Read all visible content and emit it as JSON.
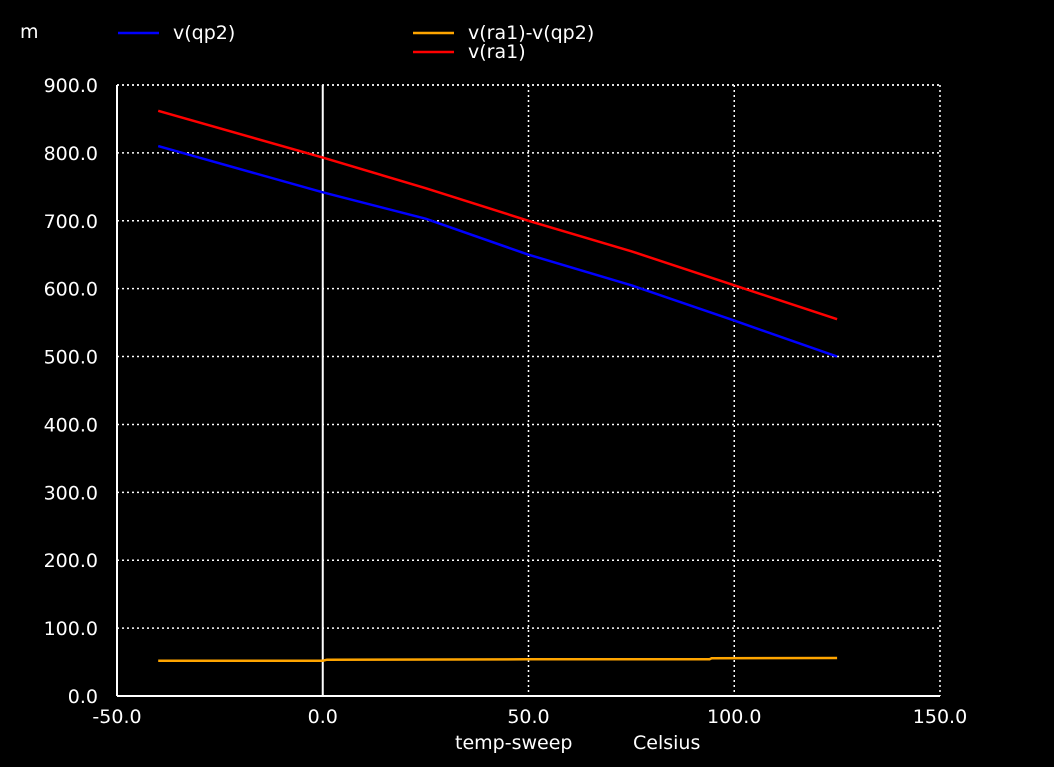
{
  "unit_prefix": "m",
  "xlabel": "temp-sweep",
  "xunit": "Celsius",
  "chart_data": {
    "type": "line",
    "xlim": [
      -50,
      150
    ],
    "ylim": [
      0,
      900
    ],
    "grid": true,
    "x_ticks": [
      "-50.0",
      "0.0",
      "50.0",
      "100.0",
      "150.0"
    ],
    "y_ticks": [
      "0.0",
      "100.0",
      "200.0",
      "300.0",
      "400.0",
      "500.0",
      "600.0",
      "700.0",
      "800.0",
      "900.0"
    ],
    "marker_x": 0,
    "series": [
      {
        "name": "v(qp2)",
        "color": "#0000ff",
        "x": [
          -40,
          0,
          25,
          50,
          75,
          100,
          125
        ],
        "y": [
          810,
          742,
          703,
          650,
          605,
          553,
          500
        ]
      },
      {
        "name": "v(ra1)-v(qp2)",
        "color": "#ffa500",
        "x": [
          -40,
          0,
          1,
          50,
          94,
          94.5,
          125
        ],
        "y": [
          52,
          52,
          53.5,
          54,
          54,
          55.5,
          56
        ]
      },
      {
        "name": "v(ra1)",
        "color": "#ff0000",
        "x": [
          -40,
          0,
          25,
          50,
          75,
          100,
          125
        ],
        "y": [
          862,
          793,
          748,
          700,
          655,
          605,
          555
        ]
      }
    ]
  }
}
